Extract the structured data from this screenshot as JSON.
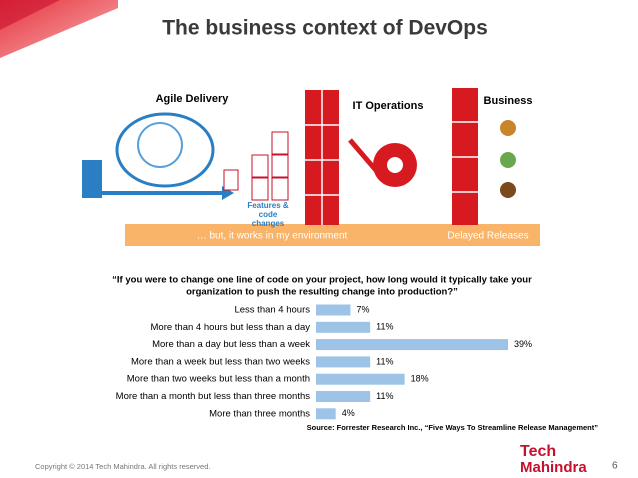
{
  "header": {
    "title": "The business context of DevOps"
  },
  "diagram": {
    "agile": "Agile Delivery",
    "it_ops": "IT Operations",
    "business": "Business",
    "features": [
      "Features &",
      "code",
      "changes"
    ],
    "band_left": "… but, it works in my environment",
    "band_right": "Delayed Releases"
  },
  "chart_data": {
    "type": "bar",
    "orientation": "horizontal",
    "title": [
      "“If you were to change one line of code on your project, how long would it typically take your",
      "organization to push the resulting change into production?”"
    ],
    "categories": [
      "Less than 4 hours",
      "More than 4 hours but less than a day",
      "More than a day but less than a week",
      "More than a week but less than two weeks",
      "More than two weeks but less than a month",
      "More than a month but less than three months",
      "More than three months"
    ],
    "values": [
      7,
      11,
      39,
      11,
      18,
      11,
      4
    ],
    "value_labels": [
      "7%",
      "11%",
      "39%",
      "11%",
      "18%",
      "11%",
      "4%"
    ],
    "color": "#9dc3e6"
  },
  "source": "Source: Forrester Research Inc., “Five Ways To Streamline Release Management”",
  "footer": {
    "copyright": "Copyright © 2014 Tech Mahindra. All rights reserved.",
    "page": "6",
    "logo": [
      "Tech",
      "Mahindra"
    ]
  }
}
